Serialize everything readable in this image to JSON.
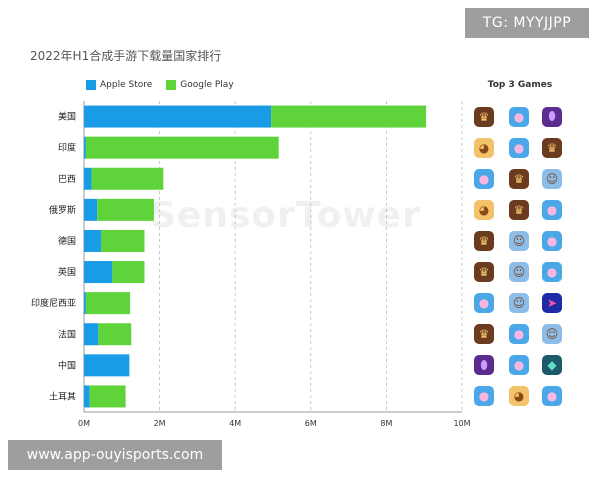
{
  "title": "2022年H1合成手游下载量国家排行",
  "watermark": "SensorTower",
  "badges": {
    "tg": "TG: MYYJJPP",
    "url": "www.app-ouyisports.com"
  },
  "legend": [
    {
      "name": "Apple Store",
      "color": "#1a9be6"
    },
    {
      "name": "Google Play",
      "color": "#5ed43a"
    }
  ],
  "top3_label": "Top 3 Games",
  "colors": {
    "apple": "#1a9be6",
    "google": "#5ed43a",
    "grid": "#bbbbbb"
  },
  "chart_data": {
    "type": "bar",
    "orientation": "horizontal",
    "stacked": true,
    "title": "2022年H1合成手游下载量国家排行",
    "categories": [
      "美国",
      "印度",
      "巴西",
      "俄罗斯",
      "德国",
      "英国",
      "印度尼西亚",
      "法国",
      "中国",
      "土耳其"
    ],
    "series": [
      {
        "name": "Apple Store",
        "values": [
          4.95,
          0.05,
          0.2,
          0.35,
          0.45,
          0.75,
          0.05,
          0.38,
          1.2,
          0.15
        ]
      },
      {
        "name": "Google Play",
        "values": [
          4.1,
          5.1,
          1.9,
          1.5,
          1.15,
          0.85,
          1.17,
          0.87,
          0.0,
          0.95
        ]
      }
    ],
    "xlim": [
      0,
      10
    ],
    "xticks": [
      "0M",
      "2M",
      "4M",
      "6M",
      "8M",
      "10M"
    ],
    "grid": true,
    "legend_position": "top-left"
  },
  "top3_games": [
    [
      "brown-avatar-icon",
      "pink-bubble-icon",
      "purple-egg-icon"
    ],
    [
      "cat-icon",
      "pink-bubble-icon",
      "brown-avatar-icon"
    ],
    [
      "pink-bubble-icon",
      "brown-avatar-icon",
      "doll-icon"
    ],
    [
      "cat-icon",
      "brown-avatar-icon",
      "pink-bubble-icon"
    ],
    [
      "brown-avatar-icon",
      "doll-icon",
      "pink-bubble-icon"
    ],
    [
      "brown-avatar-icon",
      "doll-icon",
      "pink-bubble-icon"
    ],
    [
      "pink-bubble-icon",
      "doll-icon",
      "race-car-icon"
    ],
    [
      "brown-avatar-icon",
      "pink-bubble-icon",
      "doll-icon"
    ],
    [
      "purple-egg-icon",
      "pink-bubble-icon",
      "fish-icon"
    ],
    [
      "pink-bubble-icon",
      "cat-icon",
      "pink-bubble-icon"
    ]
  ]
}
